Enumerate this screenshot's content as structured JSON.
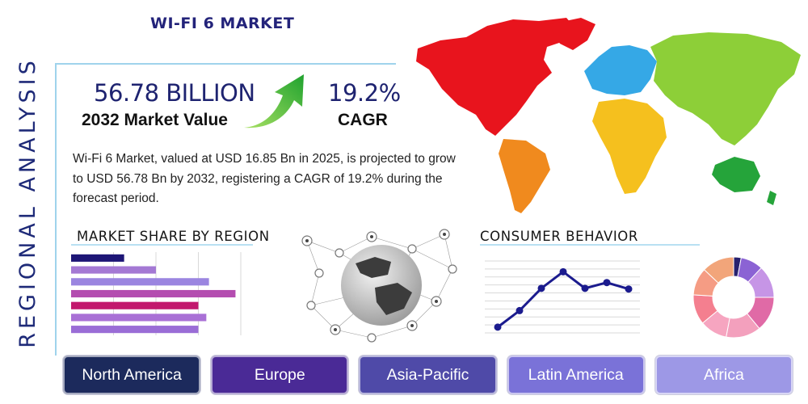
{
  "page": {
    "side_title": "REGIONAL ANALYSIS",
    "main_title": "WI-FI 6 MARKET"
  },
  "kpis": {
    "market_value": "56.78 BILLION",
    "market_value_label": "2032 Market Value",
    "cagr": "19.2%",
    "cagr_label": "CAGR"
  },
  "description": "Wi-Fi 6 Market, valued at USD 16.85 Bn in 2025, is projected to grow to USD 56.78 Bn by 2032, registering a CAGR of 19.2% during the forecast period.",
  "sections": {
    "market_share_title": "MARKET SHARE BY REGION",
    "consumer_title": "CONSUMER BEHAVIOR"
  },
  "regions": [
    {
      "label": "North America",
      "color": "#1c2a5c"
    },
    {
      "label": "Europe",
      "color": "#4a2a96"
    },
    {
      "label": "Asia-Pacific",
      "color": "#4f4aa8"
    },
    {
      "label": "Latin America",
      "color": "#7a72d8"
    },
    {
      "label": "Africa",
      "color": "#9d98e6"
    }
  ],
  "icons": {
    "arrow": "growth-arrow-icon",
    "globe": "network-globe-icon",
    "map": "world-map-icon"
  },
  "chart_data": [
    {
      "type": "bar",
      "orientation": "horizontal",
      "values": [
        10,
        16,
        26,
        31,
        24,
        25.5,
        24
      ],
      "colors": [
        "#1d1676",
        "#a479d4",
        "#9b85e0",
        "#b44db0",
        "#c2186d",
        "#a970d6",
        "#9a6dd6"
      ],
      "xlim": [
        0,
        32
      ],
      "grid": true
    },
    {
      "type": "line",
      "x": [
        1,
        2,
        3,
        4,
        5,
        6,
        7
      ],
      "y": [
        8,
        31,
        62,
        85,
        62,
        70,
        61
      ],
      "ylim": [
        0,
        100
      ],
      "color": "#1b1b8e",
      "grid": true
    },
    {
      "type": "pie",
      "style": "donut",
      "values": [
        3,
        9,
        13,
        14,
        14,
        11,
        12,
        11,
        13
      ],
      "colors": [
        "#28216e",
        "#8b63d4",
        "#c695e6",
        "#e06aa6",
        "#f3a0bd",
        "#f6a5c0",
        "#f47f8f",
        "#f59c84",
        "#f2a57a"
      ]
    }
  ]
}
